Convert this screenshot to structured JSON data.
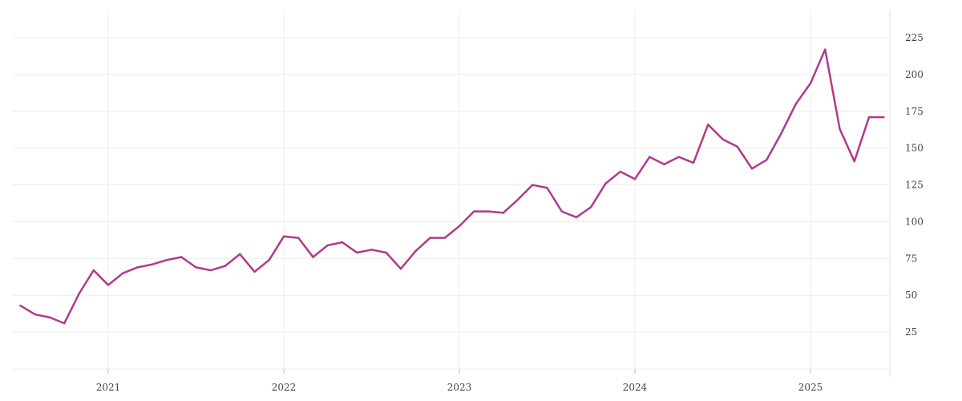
{
  "colors": {
    "series": "#b03a8c"
  },
  "chart_data": {
    "type": "line",
    "title": "",
    "xlabel": "",
    "ylabel": "",
    "x_tick_labels": [
      "2021",
      "2022",
      "2023",
      "2024",
      "2025"
    ],
    "y_ticks": [
      25,
      50,
      75,
      100,
      125,
      150,
      175,
      200,
      225
    ],
    "ylim": [
      0,
      245
    ],
    "x_range": [
      "2020-07",
      "2025-07"
    ],
    "grid": true,
    "y_axis_side": "right",
    "series": [
      {
        "x": [
          "2020-07",
          "2020-08",
          "2020-09",
          "2020-10",
          "2020-11",
          "2020-12",
          "2021-01",
          "2021-02",
          "2021-03",
          "2021-04",
          "2021-05",
          "2021-06",
          "2021-07",
          "2021-08",
          "2021-09",
          "2021-10",
          "2021-11",
          "2021-12",
          "2022-01",
          "2022-02",
          "2022-03",
          "2022-04",
          "2022-05",
          "2022-06",
          "2022-07",
          "2022-08",
          "2022-09",
          "2022-10",
          "2022-11",
          "2022-12",
          "2023-01",
          "2023-02",
          "2023-03",
          "2023-04",
          "2023-05",
          "2023-06",
          "2023-07",
          "2023-08",
          "2023-09",
          "2023-10",
          "2023-11",
          "2023-12",
          "2024-01",
          "2024-02",
          "2024-03",
          "2024-04",
          "2024-05",
          "2024-06",
          "2024-07",
          "2024-08",
          "2024-09",
          "2024-10",
          "2024-11",
          "2024-12",
          "2025-01",
          "2025-02",
          "2025-03",
          "2025-04",
          "2025-05",
          "2025-06"
        ],
        "values": [
          43,
          37,
          35,
          31,
          51,
          67,
          57,
          65,
          69,
          71,
          74,
          76,
          69,
          67,
          70,
          78,
          66,
          74,
          90,
          89,
          76,
          84,
          86,
          79,
          81,
          79,
          68,
          80,
          89,
          89,
          97,
          107,
          107,
          106,
          115,
          125,
          123,
          107,
          103,
          110,
          126,
          134,
          129,
          144,
          139,
          144,
          140,
          166,
          156,
          151,
          136,
          142,
          160,
          180,
          194,
          217,
          163,
          141,
          171,
          171
        ]
      }
    ]
  }
}
